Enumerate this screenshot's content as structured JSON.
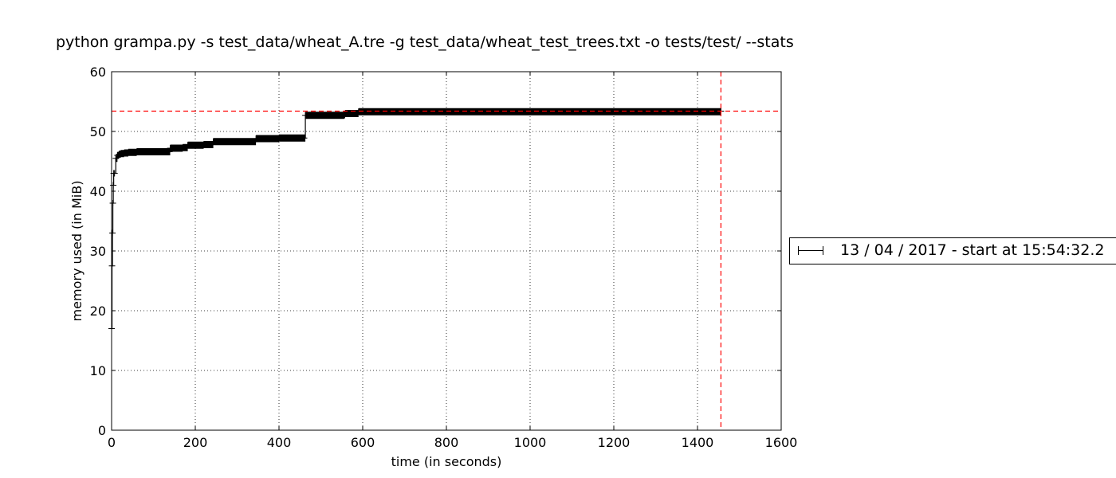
{
  "chart_data": {
    "type": "line",
    "title": "python grampa.py -s test_data/wheat_A.tre -g test_data/wheat_test_trees.txt -o tests/test/ --stats",
    "xlabel": "time (in seconds)",
    "ylabel": "memory used (in MiB)",
    "xlim": [
      0,
      1600
    ],
    "ylim": [
      0,
      60
    ],
    "xticks": [
      0,
      200,
      400,
      600,
      800,
      1000,
      1200,
      1400,
      1600
    ],
    "yticks": [
      0,
      10,
      20,
      30,
      40,
      50,
      60
    ],
    "grid": true,
    "legend_position": "right",
    "series": [
      {
        "name": "13 / 04 / 2017 - start at 15:54:32.2",
        "color": "#000000",
        "marker": "+",
        "x": [
          0,
          1,
          2,
          3,
          4,
          5,
          7,
          10,
          14,
          18,
          22,
          30,
          40,
          60,
          100,
          138,
          140,
          170,
          182,
          220,
          243,
          300,
          345,
          400,
          460,
          463,
          500,
          556,
          558,
          588,
          590,
          700,
          900,
          1100,
          1300,
          1456
        ],
        "values": [
          17,
          27.5,
          33,
          38,
          41,
          43,
          43,
          45.5,
          46,
          46.2,
          46.3,
          46.4,
          46.5,
          46.6,
          46.6,
          46.6,
          47.2,
          47.3,
          47.7,
          47.8,
          48.3,
          48.3,
          48.8,
          48.9,
          48.9,
          52.7,
          52.7,
          52.8,
          53.0,
          53.0,
          53.3,
          53.3,
          53.3,
          53.3,
          53.3,
          53.4
        ]
      }
    ],
    "reference_lines": {
      "color": "#ff0000",
      "max_memory": 53.4,
      "end_time": 1456
    }
  }
}
